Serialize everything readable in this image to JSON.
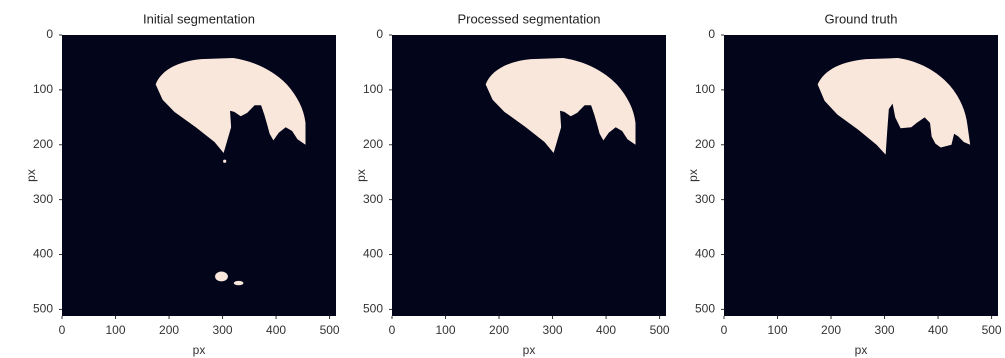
{
  "chart_data": [
    {
      "type": "image",
      "title": "Initial segmentation",
      "xlabel": "px",
      "ylabel": "px",
      "xlim": [
        0,
        512
      ],
      "ylim": [
        512,
        0
      ],
      "xticks": [
        0,
        100,
        200,
        300,
        400,
        500
      ],
      "yticks": [
        0,
        100,
        200,
        300,
        400,
        500
      ],
      "background": "#03051a",
      "color": "#fae7dc"
    },
    {
      "type": "image",
      "title": "Processed segmentation",
      "xlabel": "px",
      "ylabel": "px",
      "xlim": [
        0,
        512
      ],
      "ylim": [
        512,
        0
      ],
      "xticks": [
        0,
        100,
        200,
        300,
        400,
        500
      ],
      "yticks": [
        0,
        100,
        200,
        300,
        400,
        500
      ],
      "background": "#03051a",
      "color": "#fae7dc"
    },
    {
      "type": "image",
      "title": "Ground truth",
      "xlabel": "px",
      "ylabel": "px",
      "xlim": [
        0,
        512
      ],
      "ylim": [
        512,
        0
      ],
      "xticks": [
        0,
        100,
        200,
        300,
        400,
        500
      ],
      "yticks": [
        0,
        100,
        200,
        300,
        400,
        500
      ],
      "background": "#03051a",
      "color": "#fae7dc"
    }
  ]
}
